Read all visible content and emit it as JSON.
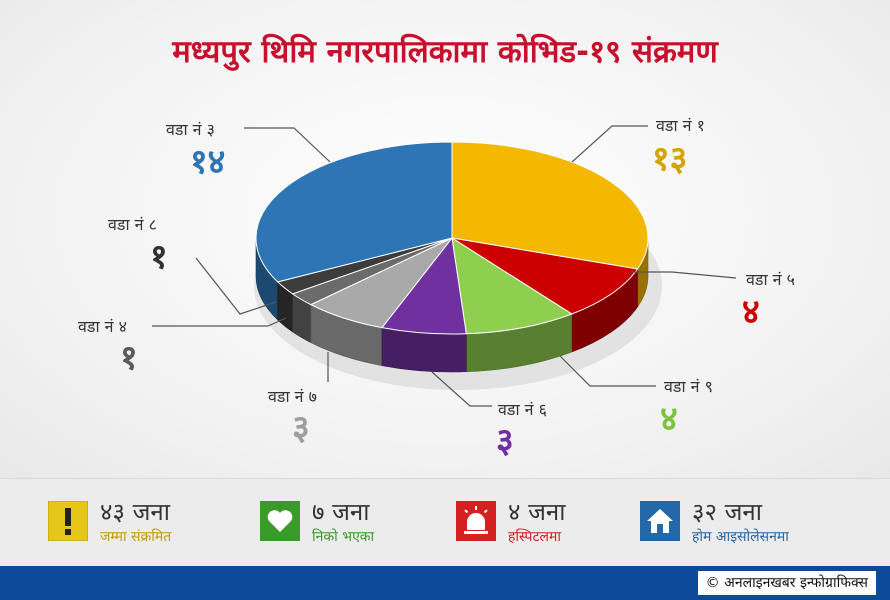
{
  "title": "मध्यपुर थिमि नगरपालिकामा कोभिड-१९ संक्रमण",
  "chart_data": {
    "type": "pie",
    "title": "मध्यपुर थिमि नगरपालिकामा कोभिड-१९ संक्रमण",
    "slices": [
      {
        "label": "वडा नं १",
        "value": 13,
        "value_text": "१३",
        "color": "#f5b800"
      },
      {
        "label": "वडा नं ५",
        "value": 4,
        "value_text": "४",
        "color": "#cc0000"
      },
      {
        "label": "वडा नं ९",
        "value": 4,
        "value_text": "४",
        "color": "#8fcf4f"
      },
      {
        "label": "वडा नं ६",
        "value": 3,
        "value_text": "३",
        "color": "#7030a0"
      },
      {
        "label": "वडा नं ७",
        "value": 3,
        "value_text": "३",
        "color": "#a9a9a9"
      },
      {
        "label": "वडा नं ४",
        "value": 1,
        "value_text": "१",
        "color": "#6b6b6b"
      },
      {
        "label": "वडा नं ८",
        "value": 1,
        "value_text": "१",
        "color": "#3c3c3c"
      },
      {
        "label": "वडा नं ३",
        "value": 14,
        "value_text": "१४",
        "color": "#2e75b6"
      }
    ]
  },
  "stats": [
    {
      "num": "४३ जना",
      "label": "जम्मा संक्रमित",
      "icon": "exclamation-icon",
      "color": "#e6c619",
      "label_color": "#c79a00"
    },
    {
      "num": "७ जना",
      "label": "निको भएका",
      "icon": "heart-icon",
      "color": "#3a9a2a",
      "label_color": "#3a9a2a"
    },
    {
      "num": "४ जना",
      "label": "हस्पिटलमा",
      "icon": "siren-icon",
      "color": "#d42020",
      "label_color": "#d42020"
    },
    {
      "num": "३२ जना",
      "label": "होम आइसोलेसनमा",
      "icon": "home-icon",
      "color": "#2368a8",
      "label_color": "#2368a8"
    }
  ],
  "credit": "© अनलाइनखबर इन्फोग्राफिक्स"
}
